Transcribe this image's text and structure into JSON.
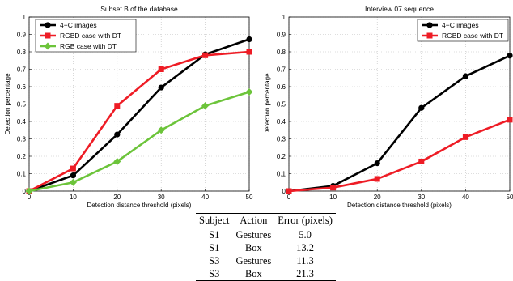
{
  "chart_data": [
    {
      "type": "line",
      "title": "Subset B of the database",
      "xlabel": "Detection distance threshold (pixels)",
      "ylabel": "Detection percentage",
      "x": [
        0,
        10,
        20,
        30,
        40,
        50
      ],
      "xlim": [
        0,
        50
      ],
      "ylim": [
        0,
        1
      ],
      "xticks": [
        "0",
        "10",
        "20",
        "30",
        "40",
        "50"
      ],
      "yticks": [
        "0",
        "0.1",
        "0.2",
        "0.3",
        "0.4",
        "0.5",
        "0.6",
        "0.7",
        "0.8",
        "0.9",
        "1"
      ],
      "grid": true,
      "legend_position": "top-left",
      "series": [
        {
          "name": "4−C images",
          "color": "#000000",
          "marker": "circle",
          "values": [
            0,
            0.09,
            0.325,
            0.595,
            0.785,
            0.872
          ]
        },
        {
          "name": "RGBD case with DT",
          "color": "#ee1c25",
          "marker": "square",
          "values": [
            0,
            0.13,
            0.49,
            0.7,
            0.78,
            0.8
          ]
        },
        {
          "name": "RGB case with DT",
          "color": "#6cc43a",
          "marker": "diamond",
          "values": [
            0,
            0.05,
            0.17,
            0.35,
            0.49,
            0.57
          ]
        }
      ]
    },
    {
      "type": "line",
      "title": "Interview 07 sequence",
      "xlabel": "Detection distance threshold (pixels)",
      "ylabel": "Detection percentage",
      "x": [
        0,
        10,
        20,
        30,
        40,
        50
      ],
      "xlim": [
        0,
        50
      ],
      "ylim": [
        0,
        1
      ],
      "xticks": [
        "0",
        "10",
        "20",
        "30",
        "40",
        "50"
      ],
      "yticks": [
        "0",
        "0.1",
        "0.2",
        "0.3",
        "0.4",
        "0.5",
        "0.6",
        "0.7",
        "0.8",
        "0.9",
        "1"
      ],
      "grid": true,
      "legend_position": "top-right",
      "series": [
        {
          "name": "4−C images",
          "color": "#000000",
          "marker": "circle",
          "values": [
            0,
            0.03,
            0.16,
            0.478,
            0.66,
            0.778
          ]
        },
        {
          "name": "RGBD case with DT",
          "color": "#ee1c25",
          "marker": "square",
          "values": [
            0,
            0.02,
            0.07,
            0.17,
            0.31,
            0.41
          ]
        }
      ]
    }
  ],
  "table": {
    "headers": [
      "Subject",
      "Action",
      "Error (pixels)"
    ],
    "rows": [
      [
        "S1",
        "Gestures",
        "5.0"
      ],
      [
        "S1",
        "Box",
        "13.2"
      ],
      [
        "S3",
        "Gestures",
        "11.3"
      ],
      [
        "S3",
        "Box",
        "21.3"
      ]
    ]
  }
}
